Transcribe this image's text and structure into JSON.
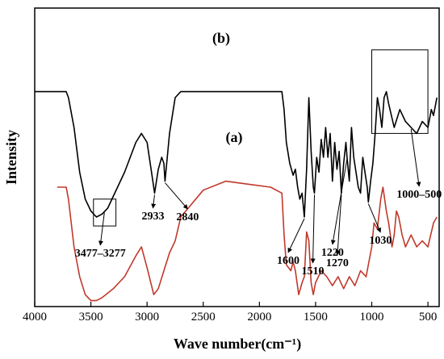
{
  "chart_data": {
    "type": "line",
    "xlabel": "Wave number(cm⁻¹)",
    "ylabel": "Intensity",
    "xlim": [
      4000,
      400
    ],
    "x_reversed": true,
    "xticks": [
      4000,
      3500,
      3000,
      2500,
      2000,
      1500,
      1000,
      500
    ],
    "yticks_shown": false,
    "grid": false,
    "colors": {
      "a": "#000000",
      "b": "#c0392b"
    },
    "series": [
      {
        "name": "(b)",
        "x": [
          3800,
          3720,
          3700,
          3650,
          3600,
          3550,
          3500,
          3450,
          3400,
          3300,
          3200,
          3100,
          3050,
          3000,
          2960,
          2940,
          2900,
          2850,
          2800,
          2750,
          2700,
          2500,
          2300,
          2100,
          1900,
          1800,
          1780,
          1760,
          1720,
          1700,
          1680,
          1650,
          1620,
          1600,
          1580,
          1560,
          1540,
          1520,
          1500,
          1450,
          1400,
          1350,
          1300,
          1250,
          1200,
          1150,
          1100,
          1050,
          1000,
          980,
          950,
          920,
          900,
          870,
          850,
          820,
          800,
          780,
          760,
          730,
          700,
          650,
          600,
          550,
          500,
          450,
          420
        ],
        "y": [
          40,
          40,
          36,
          20,
          10,
          4,
          2,
          2,
          3,
          6,
          10,
          17,
          20,
          13,
          7,
          4,
          6,
          12,
          18,
          22,
          30,
          39,
          42,
          41,
          40,
          38,
          24,
          14,
          12,
          15,
          12,
          4,
          8,
          10,
          25,
          22,
          8,
          4,
          8,
          12,
          10,
          7,
          10,
          6,
          10,
          7,
          12,
          10,
          20,
          28,
          26,
          36,
          40,
          32,
          28,
          20,
          24,
          32,
          30,
          24,
          20,
          24,
          20,
          22,
          20,
          28,
          30
        ]
      },
      {
        "name": "(a)",
        "x": [
          4000,
          3720,
          3700,
          3650,
          3600,
          3550,
          3500,
          3450,
          3400,
          3350,
          3300,
          3200,
          3100,
          3050,
          3000,
          2960,
          2933,
          2900,
          2870,
          2850,
          2840,
          2800,
          2750,
          2700,
          2500,
          2300,
          2100,
          1900,
          1800,
          1780,
          1760,
          1730,
          1700,
          1680,
          1660,
          1640,
          1620,
          1600,
          1580,
          1560,
          1540,
          1520,
          1510,
          1490,
          1470,
          1450,
          1430,
          1410,
          1390,
          1370,
          1350,
          1330,
          1310,
          1290,
          1270,
          1250,
          1230,
          1220,
          1200,
          1180,
          1160,
          1140,
          1120,
          1100,
          1080,
          1060,
          1040,
          1030,
          1010,
          990,
          970,
          950,
          930,
          910,
          890,
          870,
          850,
          800,
          750,
          700,
          650,
          600,
          550,
          500,
          470,
          450,
          420
        ],
        "y": [
          72,
          72,
          70,
          60,
          45,
          36,
          32,
          30,
          31,
          33,
          37,
          45,
          55,
          58,
          55,
          45,
          38,
          46,
          50,
          48,
          42,
          58,
          70,
          72,
          72,
          72,
          72,
          72,
          72,
          66,
          55,
          48,
          44,
          46,
          40,
          36,
          38,
          30,
          46,
          70,
          52,
          40,
          38,
          50,
          45,
          56,
          50,
          60,
          50,
          58,
          42,
          55,
          46,
          52,
          38,
          48,
          55,
          50,
          42,
          60,
          50,
          45,
          40,
          38,
          50,
          45,
          40,
          35,
          42,
          48,
          58,
          70,
          66,
          60,
          70,
          72,
          68,
          60,
          66,
          62,
          60,
          58,
          62,
          60,
          66,
          64,
          70
        ]
      }
    ],
    "annotations": [
      {
        "text": "3477–3277",
        "x": 3380,
        "y": 32
      },
      {
        "text": "2933",
        "x": 2933,
        "y": 38
      },
      {
        "text": "2840",
        "x": 2840,
        "y": 42
      },
      {
        "text": "1600",
        "x": 1600,
        "y": 30
      },
      {
        "text": "1510",
        "x": 1510,
        "y": 38
      },
      {
        "text": "1270",
        "x": 1270,
        "y": 38
      },
      {
        "text": "1220",
        "x": 1220,
        "y": 50
      },
      {
        "text": "1030",
        "x": 1030,
        "y": 35
      },
      {
        "text": "1000–500",
        "x": 650,
        "y": 60
      }
    ],
    "boxes": [
      {
        "x1": 3477,
        "x2": 3277,
        "y1": 27,
        "y2": 36
      },
      {
        "x1": 1000,
        "x2": 500,
        "y1": 58,
        "y2": 86
      }
    ]
  }
}
